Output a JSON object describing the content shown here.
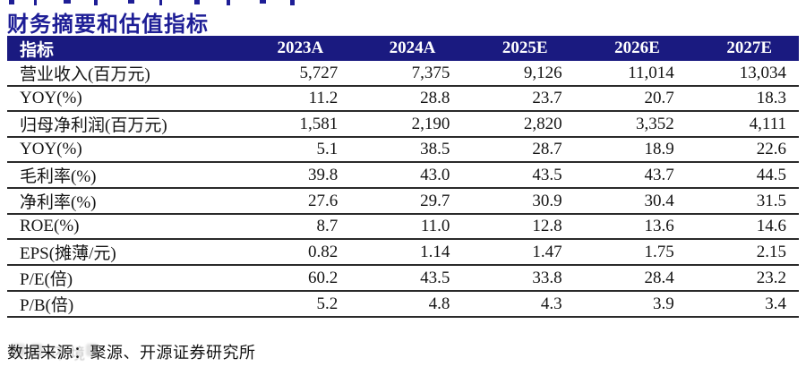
{
  "title": "财务摘要和估值指标",
  "table": {
    "index_header": "指标",
    "columns": [
      "2023A",
      "2024A",
      "2025E",
      "2026E",
      "2027E"
    ],
    "rows": [
      {
        "label": "营业收入(百万元)",
        "values": [
          "5,727",
          "7,375",
          "9,126",
          "11,014",
          "13,034"
        ]
      },
      {
        "label": "YOY(%)",
        "values": [
          "11.2",
          "28.8",
          "23.7",
          "20.7",
          "18.3"
        ]
      },
      {
        "label": "归母净利润(百万元)",
        "values": [
          "1,581",
          "2,190",
          "2,820",
          "3,352",
          "4,111"
        ]
      },
      {
        "label": "YOY(%)",
        "values": [
          "5.1",
          "38.5",
          "28.7",
          "18.9",
          "22.6"
        ]
      },
      {
        "label": "毛利率(%)",
        "values": [
          "39.8",
          "43.0",
          "43.5",
          "43.7",
          "44.5"
        ]
      },
      {
        "label": "净利率(%)",
        "values": [
          "27.6",
          "29.7",
          "30.9",
          "30.4",
          "31.5"
        ]
      },
      {
        "label": "ROE(%)",
        "values": [
          "8.7",
          "11.0",
          "12.8",
          "13.6",
          "14.6"
        ]
      },
      {
        "label": "EPS(摊薄/元)",
        "values": [
          "0.82",
          "1.14",
          "1.47",
          "1.75",
          "2.15"
        ]
      },
      {
        "label": "P/E(倍)",
        "values": [
          "60.2",
          "43.5",
          "33.8",
          "28.4",
          "23.2"
        ]
      },
      {
        "label": "P/B(倍)",
        "values": [
          "5.2",
          "4.8",
          "4.3",
          "3.9",
          "3.4"
        ]
      }
    ]
  },
  "footer": {
    "source_note": "数据来源：聚源、开源证券研究所"
  },
  "watermark": "环境",
  "colors": {
    "accent": "#1e1e96",
    "header-bg": "#1a1a80",
    "header-text": "#ffffff",
    "text": "#141414",
    "line": "#2a2a2a",
    "watermark-gray": "#bdbdbd"
  }
}
